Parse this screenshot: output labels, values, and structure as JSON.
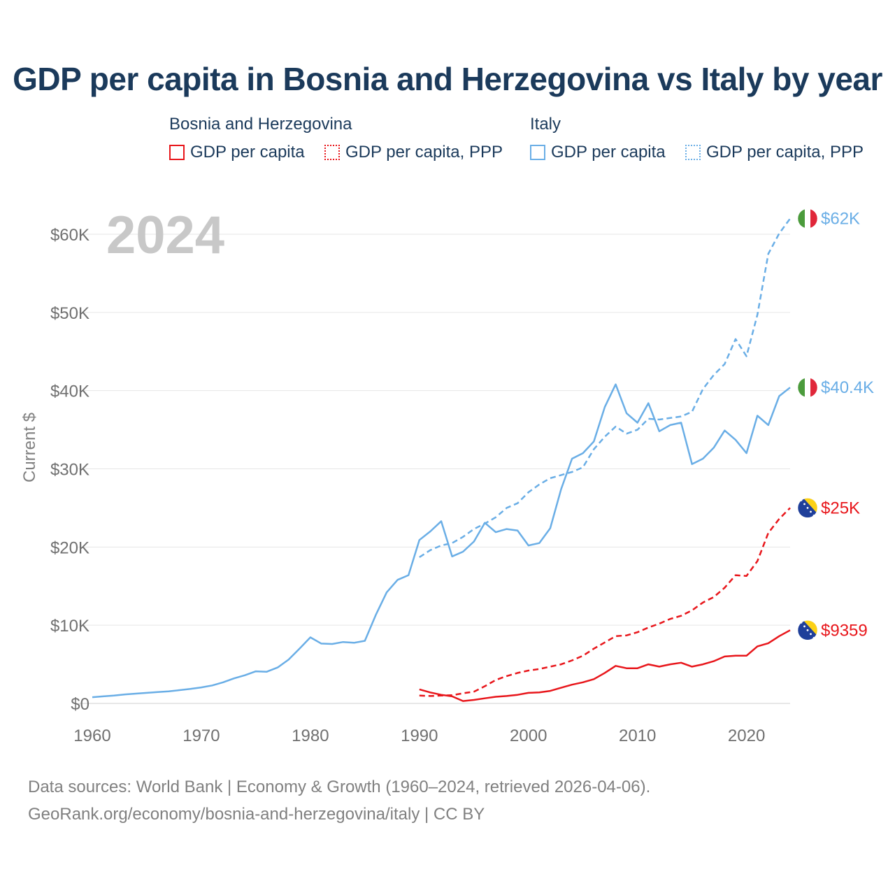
{
  "title": "GDP per capita in Bosnia and Herzegovina vs Italy by year",
  "legend": {
    "groups": [
      {
        "name": "Bosnia and Herzegovina",
        "items": [
          "GDP per capita",
          "GDP per capita, PPP"
        ]
      },
      {
        "name": "Italy",
        "items": [
          "GDP per capita",
          "GDP per capita, PPP"
        ]
      }
    ]
  },
  "colors": {
    "bosnia": "#e8161b",
    "italy": "#6aaee6",
    "year_label": "#c8c8c8",
    "grid": "#e6e6e6"
  },
  "year_label": "2024",
  "sources": {
    "line1": "Data sources: World Bank | Economy & Growth (1960–2024, retrieved 2026-04-06).",
    "line2": "GeoRank.org/economy/bosnia-and-herzegovina/italy | CC BY"
  },
  "chart_data": {
    "type": "line",
    "title": "GDP per capita in Bosnia and Herzegovina vs Italy by year",
    "ylabel": "Current $",
    "xlabel": "",
    "xlim": [
      1960,
      2024
    ],
    "ylim": [
      0,
      60000
    ],
    "x_ticks": [
      1960,
      1970,
      1980,
      1990,
      2000,
      2010,
      2020
    ],
    "y_ticks": [
      {
        "value": 0,
        "label": "$0"
      },
      {
        "value": 10000,
        "label": "$10K"
      },
      {
        "value": 20000,
        "label": "$20K"
      },
      {
        "value": 30000,
        "label": "$30K"
      },
      {
        "value": 40000,
        "label": "$40K"
      },
      {
        "value": 50000,
        "label": "$50K"
      },
      {
        "value": 60000,
        "label": "$60K"
      }
    ],
    "grid": true,
    "series": [
      {
        "name": "Italy GDP per capita",
        "country": "italy",
        "dash": "solid",
        "end_label": "$40.4K",
        "x": [
          1960,
          1961,
          1962,
          1963,
          1964,
          1965,
          1966,
          1967,
          1968,
          1969,
          1970,
          1971,
          1972,
          1973,
          1974,
          1975,
          1976,
          1977,
          1978,
          1979,
          1980,
          1981,
          1982,
          1983,
          1984,
          1985,
          1986,
          1987,
          1988,
          1989,
          1990,
          1991,
          1992,
          1993,
          1994,
          1995,
          1996,
          1997,
          1998,
          1999,
          2000,
          2001,
          2002,
          2003,
          2004,
          2005,
          2006,
          2007,
          2008,
          2009,
          2010,
          2011,
          2012,
          2013,
          2014,
          2015,
          2016,
          2017,
          2018,
          2019,
          2020,
          2021,
          2022,
          2023,
          2024
        ],
        "values": [
          800,
          900,
          1000,
          1150,
          1250,
          1350,
          1450,
          1550,
          1700,
          1850,
          2050,
          2300,
          2700,
          3200,
          3600,
          4100,
          4050,
          4600,
          5600,
          7000,
          8450,
          7650,
          7600,
          7850,
          7750,
          8000,
          11300,
          14200,
          15800,
          16400,
          20900,
          22000,
          23300,
          18800,
          19400,
          20700,
          23100,
          21900,
          22300,
          22100,
          20200,
          20500,
          22400,
          27400,
          31300,
          32000,
          33500,
          37900,
          40800,
          37100,
          35900,
          38400,
          34800,
          35600,
          35900,
          30600,
          31300,
          32700,
          34900,
          33700,
          32000,
          36800,
          35600,
          39300,
          40400
        ]
      },
      {
        "name": "Italy GDP per capita, PPP",
        "country": "italy",
        "dash": "dashed",
        "end_label": "$62K",
        "x": [
          1990,
          1991,
          1992,
          1993,
          1994,
          1995,
          1996,
          1997,
          1998,
          1999,
          2000,
          2001,
          2002,
          2003,
          2004,
          2005,
          2006,
          2007,
          2008,
          2009,
          2010,
          2011,
          2012,
          2013,
          2014,
          2015,
          2016,
          2017,
          2018,
          2019,
          2020,
          2021,
          2022,
          2023,
          2024
        ],
        "values": [
          18700,
          19600,
          20200,
          20500,
          21300,
          22300,
          23000,
          23800,
          25000,
          25600,
          27000,
          28000,
          28800,
          29200,
          29600,
          30200,
          32500,
          34100,
          35400,
          34500,
          35000,
          36400,
          36300,
          36500,
          36700,
          37300,
          40200,
          42000,
          43400,
          46600,
          44400,
          49700,
          57500,
          60100,
          62000
        ]
      },
      {
        "name": "Bosnia and Herzegovina GDP per capita",
        "country": "bosnia",
        "dash": "solid",
        "end_label": "$9359",
        "x": [
          1990,
          1991,
          1992,
          1993,
          1994,
          1995,
          1996,
          1997,
          1998,
          1999,
          2000,
          2001,
          2002,
          2003,
          2004,
          2005,
          2006,
          2007,
          2008,
          2009,
          2010,
          2011,
          2012,
          2013,
          2014,
          2015,
          2016,
          2017,
          2018,
          2019,
          2020,
          2021,
          2022,
          2023,
          2024
        ],
        "values": [
          1800,
          1400,
          1100,
          900,
          300,
          450,
          650,
          850,
          950,
          1100,
          1350,
          1400,
          1600,
          2000,
          2400,
          2700,
          3100,
          3900,
          4800,
          4500,
          4500,
          5000,
          4700,
          5000,
          5200,
          4700,
          5000,
          5400,
          6000,
          6100,
          6100,
          7300,
          7700,
          8600,
          9359
        ]
      },
      {
        "name": "Bosnia and Herzegovina GDP per capita, PPP",
        "country": "bosnia",
        "dash": "dashed",
        "end_label": "$25K",
        "x": [
          1990,
          1991,
          1992,
          1993,
          1994,
          1995,
          1996,
          1997,
          1998,
          1999,
          2000,
          2001,
          2002,
          2003,
          2004,
          2005,
          2006,
          2007,
          2008,
          2009,
          2010,
          2011,
          2012,
          2013,
          2014,
          2015,
          2016,
          2017,
          2018,
          2019,
          2020,
          2021,
          2022,
          2023,
          2024
        ],
        "values": [
          1000,
          950,
          1000,
          1050,
          1300,
          1500,
          2200,
          3000,
          3500,
          3900,
          4200,
          4400,
          4700,
          5000,
          5500,
          6100,
          7000,
          7800,
          8600,
          8700,
          9100,
          9700,
          10200,
          10800,
          11200,
          11900,
          12900,
          13600,
          14800,
          16400,
          16300,
          18200,
          21800,
          23600,
          25000
        ]
      }
    ]
  }
}
